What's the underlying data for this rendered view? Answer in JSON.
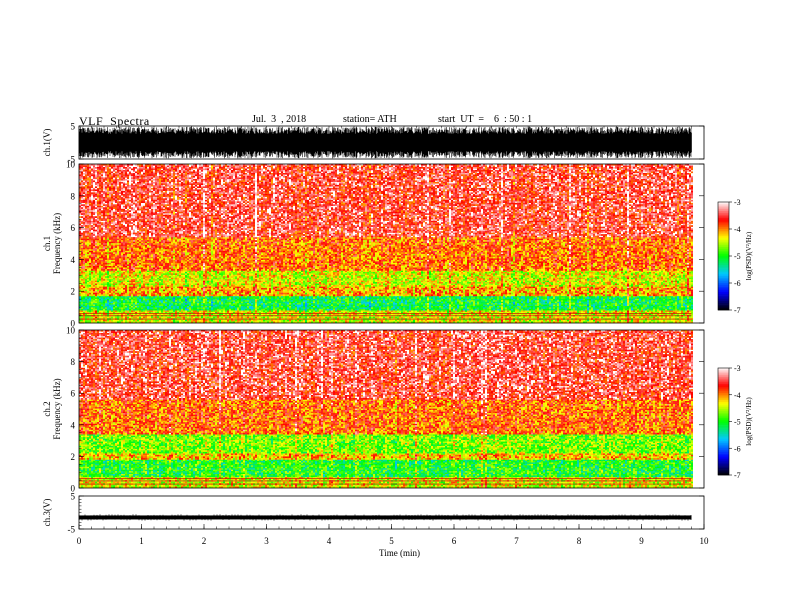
{
  "header": {
    "title": "VLF  Spectra",
    "date": "Jul.  3  , 2018",
    "station": "station= ATH",
    "start": "start  UT  =    6  : 50 : 1"
  },
  "chart_data": [
    {
      "type": "line",
      "name": "ch1-waveform",
      "ylabel": "ch.1(V)",
      "ylim": [
        -5,
        5
      ],
      "yticks": [
        "5",
        "-5"
      ],
      "xlim": [
        0,
        10
      ],
      "note_amplitude_v": 4.8
    },
    {
      "type": "heatmap",
      "name": "ch1-spectrogram",
      "ylabel_lines": [
        "ch.1",
        "Frequency  (kHz)"
      ],
      "ylim": [
        0,
        10
      ],
      "yticks": [
        "0",
        "2",
        "4",
        "6",
        "8",
        "10"
      ],
      "xlim": [
        0,
        9.8
      ],
      "bands": [
        {
          "from": 0.0,
          "to": 0.8,
          "level": -4.4
        },
        {
          "from": 0.8,
          "to": 1.7,
          "level": -5.1
        },
        {
          "from": 1.7,
          "to": 2.3,
          "level": -4.1
        },
        {
          "from": 2.3,
          "to": 3.3,
          "level": -4.4
        },
        {
          "from": 3.3,
          "to": 5.4,
          "level": -3.9
        },
        {
          "from": 5.4,
          "to": 10.0,
          "level": -3.5
        }
      ]
    },
    {
      "type": "heatmap",
      "name": "ch2-spectrogram",
      "ylabel_lines": [
        "ch.2",
        "Frequency  (kHz)"
      ],
      "ylim": [
        0,
        10
      ],
      "yticks": [
        "0",
        "2",
        "4",
        "6",
        "8",
        "10"
      ],
      "xlim": [
        0,
        9.8
      ],
      "bands": [
        {
          "from": 0.0,
          "to": 0.7,
          "level": -4.4
        },
        {
          "from": 0.7,
          "to": 1.8,
          "level": -5.0
        },
        {
          "from": 1.8,
          "to": 2.2,
          "level": -4.2
        },
        {
          "from": 2.2,
          "to": 3.4,
          "level": -4.7
        },
        {
          "from": 3.4,
          "to": 5.6,
          "level": -3.9
        },
        {
          "from": 5.6,
          "to": 10.0,
          "level": -3.5
        }
      ]
    },
    {
      "type": "line",
      "name": "ch3-waveform",
      "ylabel": "ch.3(V)",
      "ylim": [
        -5,
        5
      ],
      "yticks": [
        "5",
        "-5"
      ],
      "xlim": [
        0,
        10
      ],
      "note_level_v": -1.5
    }
  ],
  "xaxis": {
    "label": "Time  (min)",
    "ticks": [
      "0",
      "1",
      "2",
      "3",
      "4",
      "5",
      "6",
      "7",
      "8",
      "9",
      "10"
    ]
  },
  "colorbar": {
    "label": "log(PSD)(V²/Hz)",
    "ticks": [
      "-3",
      "-4",
      "-5",
      "-6",
      "-7"
    ],
    "colors": [
      "#000000",
      "#0000ff",
      "#00c8ff",
      "#00ff00",
      "#ffff00",
      "#ff0000",
      "#ffffff"
    ]
  }
}
